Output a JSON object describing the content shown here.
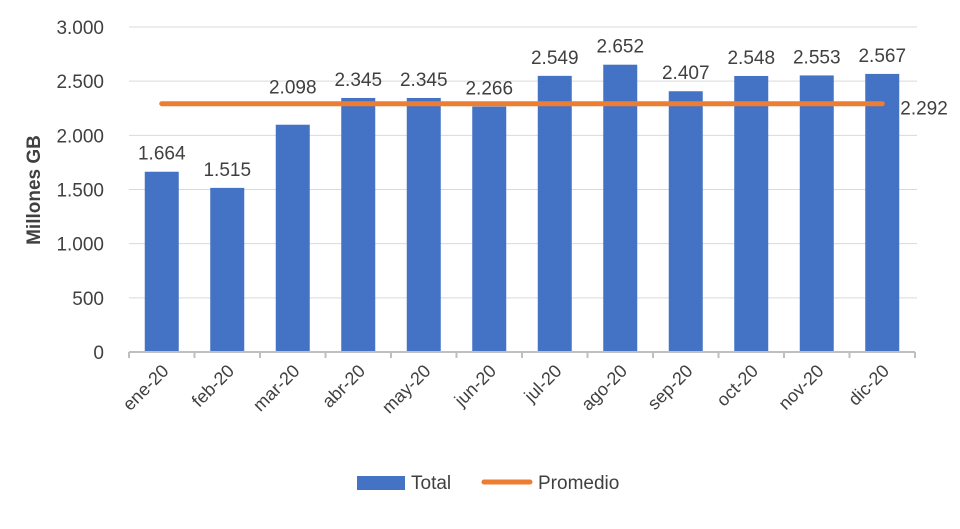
{
  "chart_data": {
    "type": "bar",
    "title": "",
    "xlabel": "",
    "ylabel": "Millones GB",
    "ylim": [
      0,
      3000
    ],
    "yticks": [
      0,
      500,
      1000,
      1500,
      2000,
      2500,
      3000
    ],
    "ytick_labels": [
      "0",
      "500",
      "1.000",
      "1.500",
      "2.000",
      "2.500",
      "3.000"
    ],
    "grid": true,
    "categories": [
      "ene-20",
      "feb-20",
      "mar-20",
      "abr-20",
      "may-20",
      "jun-20",
      "jul-20",
      "ago-20",
      "sep-20",
      "oct-20",
      "nov-20",
      "dic-20"
    ],
    "series": [
      {
        "name": "Total",
        "type": "bar",
        "color": "#4472C4",
        "values": [
          1664,
          1515,
          2098,
          2345,
          2345,
          2266,
          2549,
          2652,
          2407,
          2548,
          2553,
          2567
        ],
        "labels": [
          "1.664",
          "1.515",
          "2.098",
          "2.345",
          "2.345",
          "2.266",
          "2.549",
          "2.652",
          "2.407",
          "2.548",
          "2.553",
          "2.567"
        ]
      },
      {
        "name": "Promedio",
        "type": "line",
        "color": "#ED7D31",
        "values": [
          2292,
          2292,
          2292,
          2292,
          2292,
          2292,
          2292,
          2292,
          2292,
          2292,
          2292,
          2292
        ],
        "end_label": "2.292"
      }
    ],
    "legend": {
      "position": "bottom",
      "items": [
        "Total",
        "Promedio"
      ]
    }
  }
}
